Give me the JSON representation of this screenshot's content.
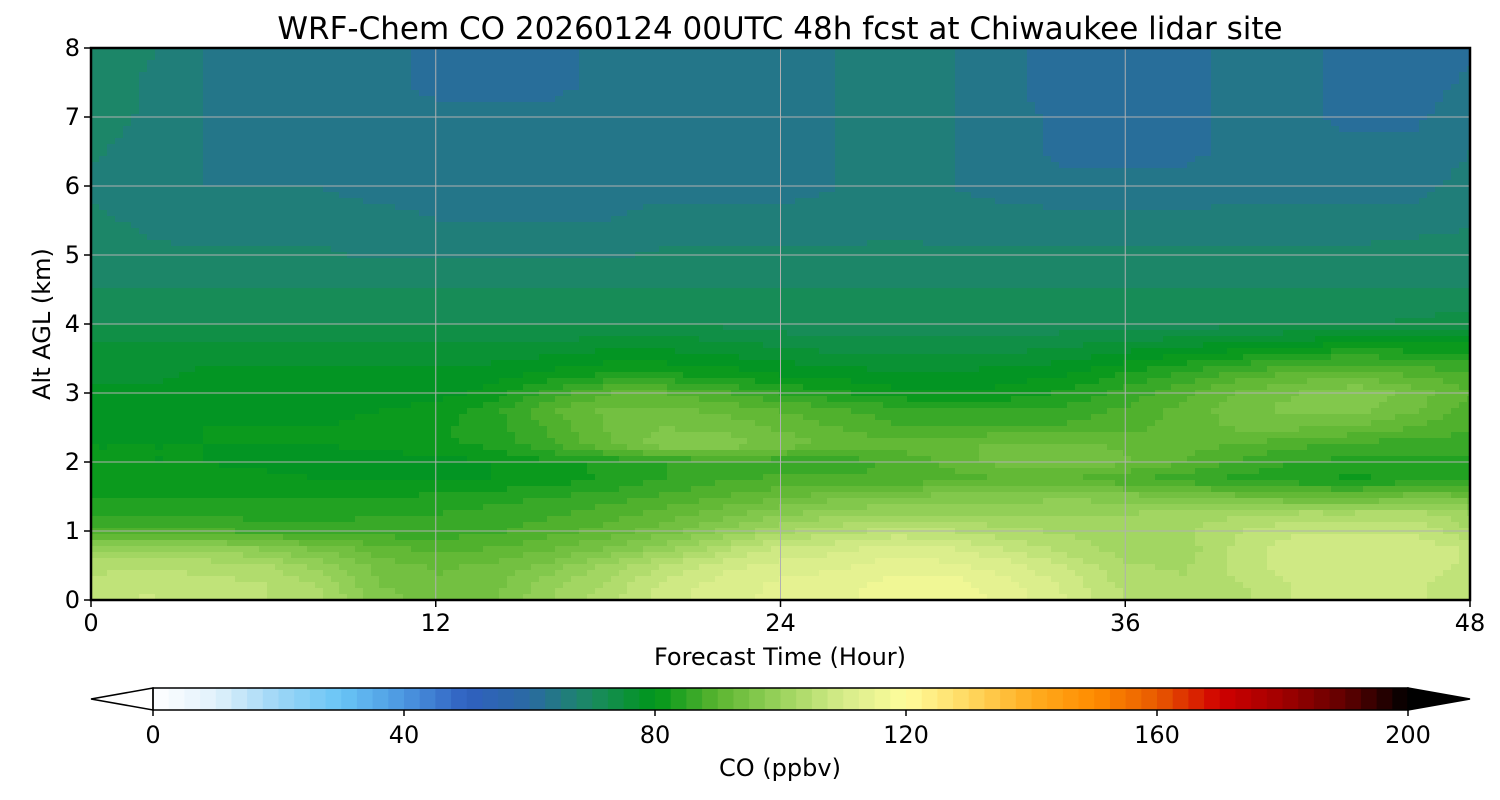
{
  "chart_data": {
    "type": "heatmap",
    "title": "WRF-Chem CO  20260124 00UTC 48h fcst at Chiwaukee lidar site",
    "xlabel": "Forecast Time (Hour)",
    "ylabel": "Alt AGL (km)",
    "xlim": [
      0,
      48
    ],
    "ylim": [
      0,
      8
    ],
    "x_ticks": [
      "0",
      "12",
      "24",
      "36",
      "48"
    ],
    "y_ticks": [
      "0",
      "1",
      "2",
      "3",
      "4",
      "5",
      "6",
      "7",
      "8"
    ],
    "grid": true,
    "x": [
      0,
      2,
      4,
      6,
      8,
      10,
      12,
      14,
      16,
      18,
      20,
      22,
      24,
      26,
      28,
      30,
      32,
      34,
      36,
      38,
      40,
      42,
      44,
      46,
      48
    ],
    "y": [
      0,
      0.25,
      0.5,
      0.75,
      1,
      1.25,
      1.5,
      1.75,
      2,
      2.25,
      2.5,
      2.75,
      3,
      3.25,
      3.5,
      3.75,
      4,
      4.5,
      5,
      5.5,
      6,
      6.5,
      7,
      7.5,
      8
    ],
    "z_ppbv": [
      [
        106,
        108,
        106,
        105,
        103,
        96,
        94,
        95,
        100,
        104,
        109,
        112,
        113,
        114,
        117,
        117,
        114,
        110,
        105,
        104,
        104,
        108,
        109,
        108,
        106
      ],
      [
        106,
        107,
        106,
        105,
        102,
        95,
        93,
        94,
        99,
        103,
        108,
        111,
        113,
        114,
        116,
        116,
        113,
        109,
        104,
        103,
        105,
        108,
        108,
        108,
        106
      ],
      [
        104,
        104,
        104,
        103,
        99,
        94,
        92,
        93,
        96,
        101,
        105,
        109,
        111,
        112,
        114,
        113,
        111,
        107,
        103,
        102,
        106,
        109,
        109,
        109,
        107
      ],
      [
        99,
        99,
        99,
        97,
        94,
        91,
        89,
        90,
        92,
        95,
        99,
        104,
        108,
        109,
        111,
        110,
        107,
        104,
        101,
        101,
        106,
        109,
        110,
        109,
        107
      ],
      [
        88,
        88,
        88,
        87,
        86,
        86,
        86,
        87,
        89,
        91,
        94,
        98,
        102,
        104,
        106,
        105,
        103,
        102,
        101,
        102,
        105,
        107,
        107,
        107,
        103
      ],
      [
        84,
        84,
        84,
        84,
        84,
        85,
        85,
        86,
        87,
        89,
        91,
        94,
        97,
        99,
        100,
        100,
        100,
        100,
        100,
        101,
        102,
        103,
        103,
        104,
        100
      ],
      [
        82,
        82,
        82,
        82,
        82,
        82,
        83,
        84,
        85,
        86,
        88,
        90,
        92,
        94,
        95,
        96,
        96,
        97,
        96,
        95,
        93,
        92,
        91,
        94,
        93
      ],
      [
        81,
        81,
        81,
        81,
        80,
        80,
        80,
        80,
        81,
        83,
        85,
        87,
        88,
        88,
        88,
        89,
        90,
        90,
        88,
        86,
        84,
        83,
        82,
        83,
        84
      ],
      [
        80,
        80,
        80,
        79,
        78,
        78,
        79,
        80,
        82,
        83,
        85,
        86,
        86,
        86,
        88,
        91,
        94,
        95,
        93,
        90,
        87,
        85,
        84,
        84,
        84
      ],
      [
        80,
        80,
        80,
        80,
        80,
        81,
        82,
        83,
        87,
        92,
        97,
        97,
        94,
        92,
        91,
        92,
        93,
        93,
        92,
        91,
        90,
        88,
        87,
        86,
        86
      ],
      [
        79,
        79,
        80,
        80,
        80,
        81,
        82,
        84,
        88,
        93,
        95,
        94,
        92,
        90,
        88,
        88,
        88,
        88,
        89,
        91,
        93,
        93,
        92,
        90,
        88
      ],
      [
        79,
        79,
        79,
        79,
        79,
        80,
        81,
        84,
        90,
        93,
        93,
        92,
        90,
        88,
        86,
        85,
        85,
        86,
        88,
        91,
        94,
        96,
        96,
        93,
        89
      ],
      [
        78,
        78,
        78,
        78,
        78,
        78,
        79,
        81,
        86,
        90,
        90,
        88,
        85,
        83,
        81,
        80,
        81,
        83,
        86,
        89,
        93,
        95,
        97,
        94,
        90
      ],
      [
        77,
        77,
        78,
        78,
        78,
        78,
        78,
        79,
        81,
        83,
        83,
        82,
        80,
        79,
        78,
        78,
        79,
        80,
        83,
        86,
        89,
        91,
        92,
        90,
        88
      ],
      [
        76,
        77,
        77,
        77,
        77,
        77,
        77,
        77,
        78,
        79,
        79,
        78,
        77,
        76,
        76,
        76,
        76,
        77,
        79,
        81,
        83,
        85,
        86,
        85,
        84
      ],
      [
        75,
        75,
        75,
        75,
        75,
        75,
        75,
        75,
        75,
        76,
        76,
        75,
        74,
        73,
        73,
        73,
        73,
        74,
        75,
        76,
        77,
        78,
        79,
        79,
        79
      ],
      [
        72,
        72,
        72,
        72,
        72,
        72,
        72,
        72,
        72,
        72,
        72,
        72,
        71,
        71,
        71,
        71,
        71,
        71,
        71,
        71,
        72,
        72,
        72,
        73,
        74
      ],
      [
        70,
        70,
        70,
        70,
        70,
        70,
        70,
        70,
        70,
        70,
        70,
        70,
        70,
        70,
        70,
        70,
        70,
        70,
        70,
        70,
        70,
        70,
        70,
        70,
        70
      ],
      [
        69,
        68,
        68,
        68,
        68,
        67,
        67,
        67,
        67,
        67,
        68,
        68,
        68,
        68,
        68,
        68,
        68,
        68,
        68,
        68,
        68,
        68,
        68,
        69,
        69
      ],
      [
        68,
        67,
        66,
        66,
        66,
        66,
        65,
        65,
        65,
        65,
        66,
        66,
        66,
        66,
        67,
        66,
        66,
        66,
        66,
        66,
        66,
        66,
        66,
        66,
        67
      ],
      [
        67,
        66,
        65,
        65,
        65,
        64,
        64,
        64,
        64,
        64,
        64,
        64,
        64,
        65,
        66,
        65,
        64,
        63,
        63,
        63,
        64,
        64,
        64,
        64,
        66
      ],
      [
        68,
        66,
        65,
        64,
        64,
        64,
        64,
        63,
        63,
        63,
        63,
        63,
        64,
        65,
        67,
        65,
        63,
        62,
        62,
        62,
        63,
        63,
        63,
        63,
        65
      ],
      [
        69,
        67,
        65,
        64,
        63,
        63,
        63,
        63,
        63,
        63,
        63,
        63,
        63,
        65,
        67,
        65,
        63,
        62,
        61,
        62,
        63,
        63,
        62,
        62,
        64
      ],
      [
        70,
        67,
        65,
        64,
        63,
        63,
        62,
        62,
        62,
        63,
        63,
        63,
        63,
        65,
        67,
        65,
        63,
        61,
        60,
        62,
        63,
        63,
        62,
        61,
        63
      ],
      [
        70,
        68,
        65,
        64,
        63,
        63,
        62,
        62,
        62,
        63,
        63,
        63,
        63,
        65,
        67,
        65,
        63,
        61,
        60,
        62,
        63,
        63,
        62,
        61,
        62
      ]
    ],
    "colorbar": {
      "label": "CO  (ppbv)",
      "range": [
        0,
        200
      ],
      "ticks": [
        "0",
        "40",
        "80",
        "120",
        "160",
        "200"
      ],
      "extend": "both",
      "colors": [
        "#ffffff",
        "#e1f1fb",
        "#9cd6f6",
        "#69c5f6",
        "#4b96e0",
        "#3060c0",
        "#2a6aa2",
        "#1a8a60",
        "#00961a",
        "#5bb530",
        "#9ad35c",
        "#d6ec8a",
        "#fffd9c",
        "#ffd860",
        "#ffad20",
        "#ff8c00",
        "#e85a00",
        "#d00000",
        "#a00000",
        "#600000",
        "#000000"
      ]
    }
  }
}
